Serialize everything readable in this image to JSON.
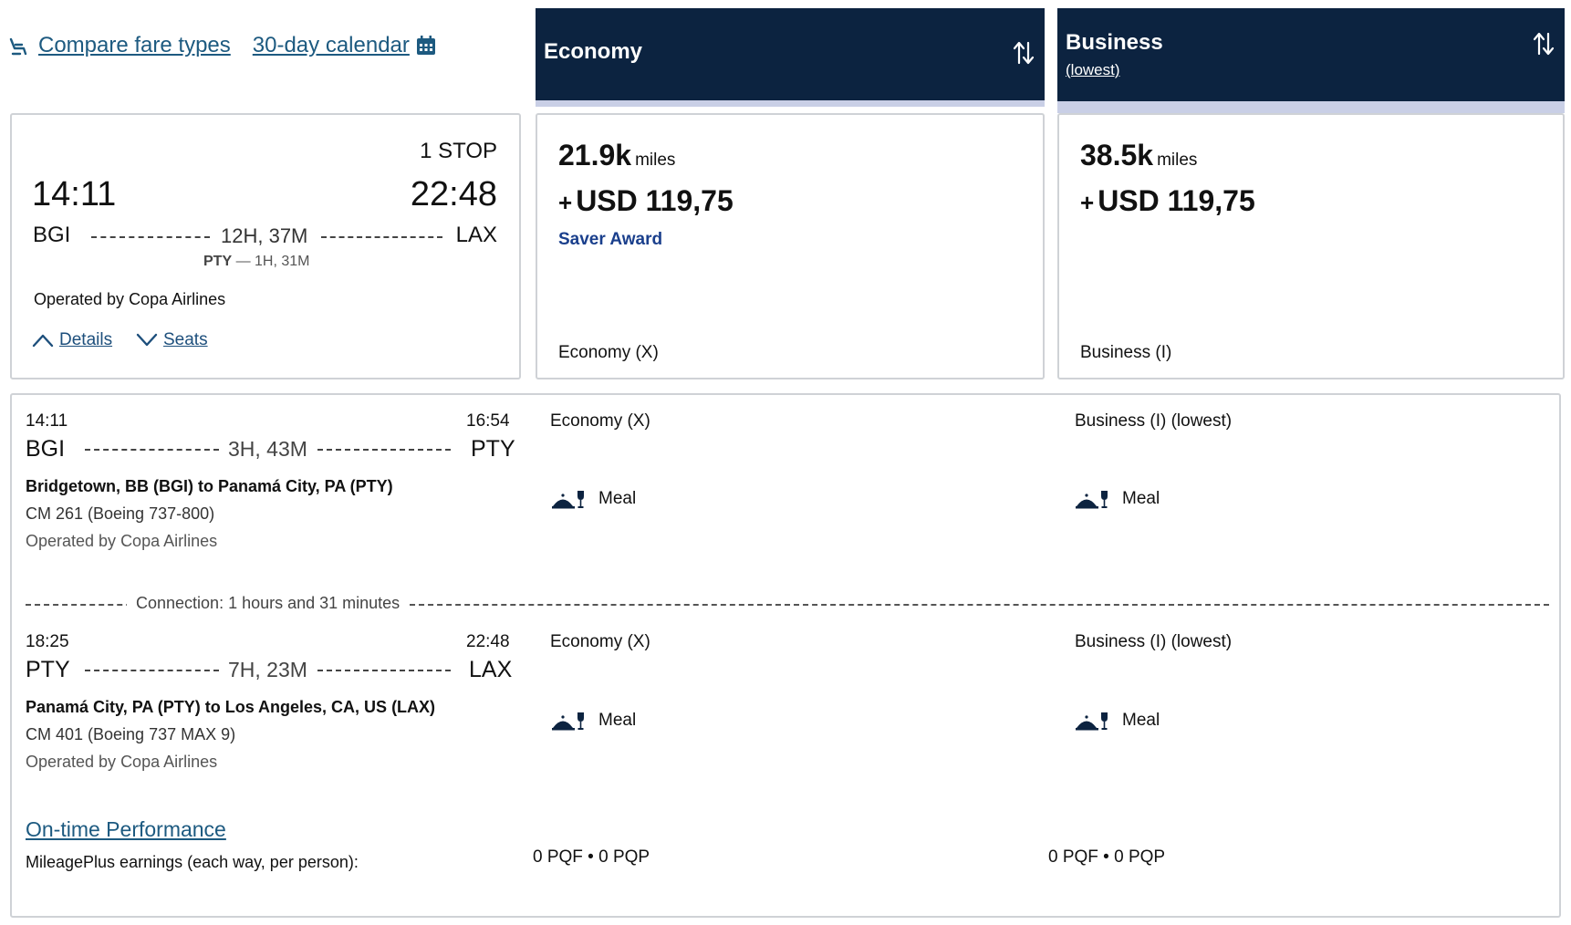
{
  "toplinks": {
    "compare": "Compare fare types",
    "calendar": "30-day calendar"
  },
  "fares": {
    "economy": {
      "title": "Economy",
      "sort_icon": "sort-icon"
    },
    "business": {
      "title": "Business",
      "sub": "(lowest)",
      "sort_icon": "sort-icon"
    }
  },
  "flight": {
    "stops": "1 STOP",
    "depart_time": "14:11",
    "arrive_time": "22:48",
    "origin": "BGI",
    "destination": "LAX",
    "duration": "12H, 37M",
    "via_code": "PTY",
    "via_layover": " — 1H, 31M",
    "operated": "Operated by Copa Airlines",
    "details_label": "Details",
    "seats_label": "Seats"
  },
  "prices": {
    "economy": {
      "miles": "21.9k",
      "miles_unit": "miles",
      "plus": "+",
      "usd": "USD 119,75",
      "award": "Saver Award",
      "cabin": "Economy (X)"
    },
    "business": {
      "miles": "38.5k",
      "miles_unit": "miles",
      "plus": "+",
      "usd": "USD 119,75",
      "cabin": "Business (I)"
    }
  },
  "segments": [
    {
      "dep_time": "14:11",
      "arr_time": "16:54",
      "from": "BGI",
      "to": "PTY",
      "duration": "3H, 43M",
      "route": "Bridgetown, BB (BGI) to Panamá City, PA (PTY)",
      "flight": "CM 261 (Boeing 737-800)",
      "operated": "Operated by Copa Airlines",
      "econ_cabin": "Economy (X)",
      "biz_cabin": "Business (I) (lowest)",
      "meal": "Meal"
    },
    {
      "dep_time": "18:25",
      "arr_time": "22:48",
      "from": "PTY",
      "to": "LAX",
      "duration": "7H, 23M",
      "route": "Panamá City, PA (PTY) to Los Angeles, CA, US (LAX)",
      "flight": "CM 401 (Boeing 737 MAX 9)",
      "operated": "Operated by Copa Airlines",
      "econ_cabin": "Economy (X)",
      "biz_cabin": "Business (I) (lowest)",
      "meal": "Meal"
    }
  ],
  "connection": "Connection: 1 hours and 31 minutes",
  "footer": {
    "otp": "On-time Performance",
    "earnings": "MileagePlus earnings (each way, per person):",
    "econ_pq": "0 PQF • 0 PQP",
    "biz_pq": "0 PQF • 0 PQP"
  }
}
